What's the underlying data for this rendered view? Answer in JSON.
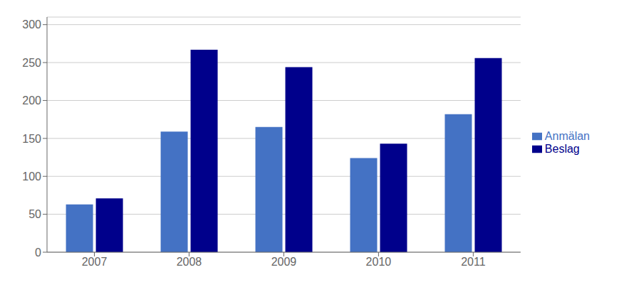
{
  "chart_data": {
    "type": "bar",
    "categories": [
      "2007",
      "2008",
      "2009",
      "2010",
      "2011"
    ],
    "series": [
      {
        "name": "Anmälan",
        "color": "#4472C4",
        "values": [
          63,
          159,
          165,
          124,
          182
        ]
      },
      {
        "name": "Beslag",
        "color": "#00008B",
        "values": [
          71,
          267,
          244,
          143,
          256
        ]
      }
    ],
    "ylim": [
      0,
      310
    ],
    "yticks": [
      0,
      50,
      100,
      150,
      200,
      250,
      300
    ],
    "grid": true,
    "legend": "right"
  }
}
